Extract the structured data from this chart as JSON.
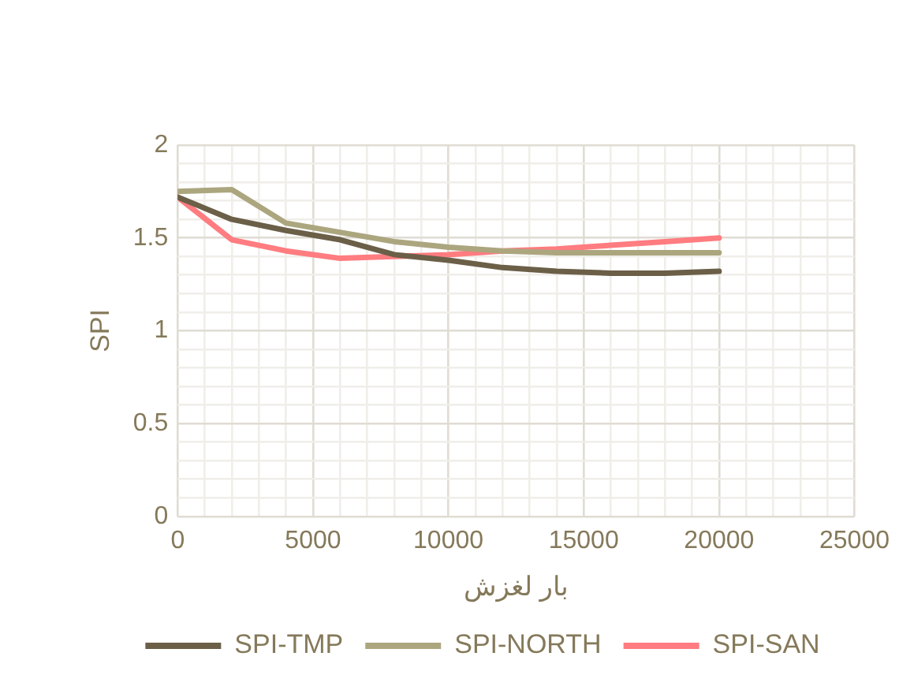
{
  "chart_data": {
    "type": "line",
    "xlabel": "بار لغزش",
    "ylabel": "SPI",
    "x": [
      0,
      2000,
      4000,
      6000,
      8000,
      10000,
      12000,
      14000,
      16000,
      18000,
      20000
    ],
    "series": [
      {
        "name": "SPI-TMP",
        "color": "#6b5f48",
        "values": [
          1.72,
          1.6,
          1.54,
          1.49,
          1.41,
          1.38,
          1.34,
          1.32,
          1.31,
          1.31,
          1.32
        ]
      },
      {
        "name": "SPI-NORTH",
        "color": "#aca67f",
        "values": [
          1.75,
          1.76,
          1.58,
          1.53,
          1.48,
          1.45,
          1.43,
          1.42,
          1.42,
          1.42,
          1.42
        ]
      },
      {
        "name": "SPI-SAN",
        "color": "#ff7c80",
        "values": [
          1.72,
          1.49,
          1.43,
          1.39,
          1.4,
          1.41,
          1.43,
          1.44,
          1.46,
          1.48,
          1.5
        ]
      }
    ],
    "xlim": [
      0,
      25000
    ],
    "xticks": [
      0,
      {
        "value": 1000,
        "label": null
      },
      {
        "value": 2000,
        "label": null
      },
      {
        "value": 3000,
        "label": null
      },
      {
        "value": 4000,
        "label": null
      },
      5000,
      {
        "value": 6000,
        "label": null
      },
      {
        "value": 7000,
        "label": null
      },
      {
        "value": 8000,
        "label": null
      },
      {
        "value": 9000,
        "label": null
      },
      10000,
      {
        "value": 11000,
        "label": null
      },
      {
        "value": 12000,
        "label": null
      },
      {
        "value": 13000,
        "label": null
      },
      {
        "value": 14000,
        "label": null
      },
      15000,
      {
        "value": 16000,
        "label": null
      },
      {
        "value": 17000,
        "label": null
      },
      {
        "value": 18000,
        "label": null
      },
      {
        "value": 19000,
        "label": null
      },
      20000,
      {
        "value": 21000,
        "label": null
      },
      {
        "value": 22000,
        "label": null
      },
      {
        "value": 23000,
        "label": null
      },
      {
        "value": 24000,
        "label": null
      },
      25000
    ],
    "ylim": [
      0,
      2
    ],
    "yticks": [
      0,
      {
        "value": 0.1,
        "label": null
      },
      {
        "value": 0.2,
        "label": null
      },
      {
        "value": 0.3,
        "label": null
      },
      {
        "value": 0.4,
        "label": null
      },
      0.5,
      {
        "value": 0.6,
        "label": null
      },
      {
        "value": 0.7,
        "label": null
      },
      {
        "value": 0.8,
        "label": null
      },
      {
        "value": 0.9,
        "label": null
      },
      1,
      {
        "value": 1.1,
        "label": null
      },
      {
        "value": 1.2,
        "label": null
      },
      {
        "value": 1.3,
        "label": null
      },
      {
        "value": 1.4,
        "label": null
      },
      1.5,
      {
        "value": 1.6,
        "label": null
      },
      {
        "value": 1.7,
        "label": null
      },
      {
        "value": 1.8,
        "label": null
      },
      {
        "value": 1.9,
        "label": null
      },
      2
    ],
    "grid": true,
    "legend": "bottom",
    "marker": "none",
    "line_style": "solid"
  }
}
